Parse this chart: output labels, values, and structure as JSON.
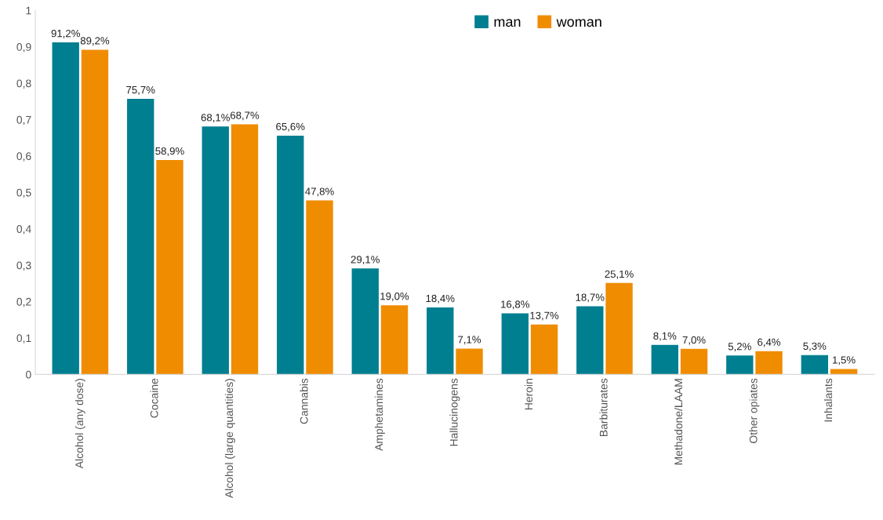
{
  "chart_data": {
    "type": "bar",
    "categories": [
      "Alcohol (any dose)",
      "Cocaine",
      "Alcohol (large quantities)",
      "Cannabis",
      "Amphetamines",
      "Hallucinogens",
      "Heroin",
      "Barbiturates",
      "Methadone/LAAM",
      "Other opiates",
      "Inhalants"
    ],
    "series": [
      {
        "name": "man",
        "color": "#007f91",
        "values": [
          0.912,
          0.757,
          0.681,
          0.656,
          0.291,
          0.184,
          0.168,
          0.187,
          0.081,
          0.052,
          0.053
        ],
        "value_labels": [
          "91,2%",
          "75,7%",
          "68,1%",
          "65,6%",
          "29,1%",
          "18,4%",
          "16,8%",
          "18,7%",
          "8,1%",
          "5,2%",
          "5,3%"
        ]
      },
      {
        "name": "woman",
        "color": "#f08c00",
        "values": [
          0.892,
          0.589,
          0.687,
          0.478,
          0.19,
          0.071,
          0.137,
          0.251,
          0.07,
          0.064,
          0.015
        ],
        "value_labels": [
          "89,2%",
          "58,9%",
          "68,7%",
          "47,8%",
          "19,0%",
          "7,1%",
          "13,7%",
          "25,1%",
          "7,0%",
          "6,4%",
          "1,5%"
        ]
      }
    ],
    "ylim": [
      0,
      1
    ],
    "yticks": [
      0,
      {
        "value": 0.1,
        "label": "0,1"
      },
      {
        "value": 0.2,
        "label": "0,2"
      },
      {
        "value": 0.3,
        "label": "0,3"
      },
      {
        "value": 0.4,
        "label": "0,4"
      },
      {
        "value": 0.5,
        "label": "0,5"
      },
      {
        "value": 0.6,
        "label": "0,6"
      },
      {
        "value": 0.7,
        "label": "0,7"
      },
      {
        "value": 0.8,
        "label": "0,8"
      },
      {
        "value": 0.9,
        "label": "0,9"
      },
      1
    ],
    "grid": false,
    "legend": "top"
  }
}
